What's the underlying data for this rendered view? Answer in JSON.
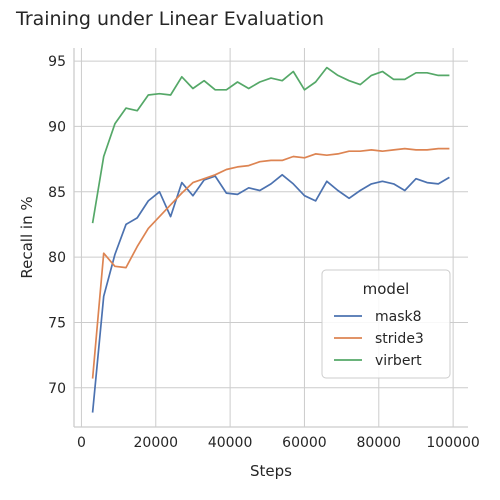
{
  "chart_data": {
    "type": "line",
    "title": "Training under Linear Evaluation",
    "xlabel": "Steps",
    "ylabel": "Recall in %",
    "xlim": [
      -2000,
      104000
    ],
    "ylim": [
      67,
      96
    ],
    "x_ticks": [
      0,
      20000,
      40000,
      60000,
      80000,
      100000
    ],
    "y_ticks": [
      70,
      75,
      80,
      85,
      90,
      95
    ],
    "grid": true,
    "legend": {
      "title": "model",
      "position": "center-right"
    },
    "x": [
      3000,
      6000,
      9000,
      12000,
      15000,
      18000,
      21000,
      24000,
      27000,
      30000,
      33000,
      36000,
      39000,
      42000,
      45000,
      48000,
      51000,
      54000,
      57000,
      60000,
      63000,
      66000,
      69000,
      72000,
      75000,
      78000,
      81000,
      84000,
      87000,
      90000,
      93000,
      96000,
      99000
    ],
    "series": [
      {
        "name": "mask8",
        "color": "#4c72b0",
        "values": [
          68.1,
          77.0,
          80.2,
          82.5,
          83.0,
          84.3,
          85.0,
          83.1,
          85.7,
          84.7,
          85.9,
          86.2,
          84.9,
          84.8,
          85.3,
          85.1,
          85.6,
          86.3,
          85.6,
          84.7,
          84.3,
          85.8,
          85.1,
          84.5,
          85.1,
          85.6,
          85.8,
          85.6,
          85.1,
          86.0,
          85.7,
          85.6,
          86.1
        ]
      },
      {
        "name": "stride3",
        "color": "#dd8452",
        "values": [
          70.7,
          80.3,
          79.3,
          79.2,
          80.8,
          82.2,
          83.1,
          84.0,
          84.9,
          85.7,
          86.0,
          86.3,
          86.7,
          86.9,
          87.0,
          87.3,
          87.4,
          87.4,
          87.7,
          87.6,
          87.9,
          87.8,
          87.9,
          88.1,
          88.1,
          88.2,
          88.1,
          88.2,
          88.3,
          88.2,
          88.2,
          88.3,
          88.3
        ]
      },
      {
        "name": "virbert",
        "color": "#55a868",
        "values": [
          82.6,
          87.7,
          90.2,
          91.4,
          91.2,
          92.4,
          92.5,
          92.4,
          93.8,
          92.9,
          93.5,
          92.8,
          92.8,
          93.4,
          92.9,
          93.4,
          93.7,
          93.5,
          94.2,
          92.8,
          93.4,
          94.5,
          93.9,
          93.5,
          93.2,
          93.9,
          94.2,
          93.6,
          93.6,
          94.1,
          94.1,
          93.9,
          93.9
        ]
      }
    ]
  }
}
